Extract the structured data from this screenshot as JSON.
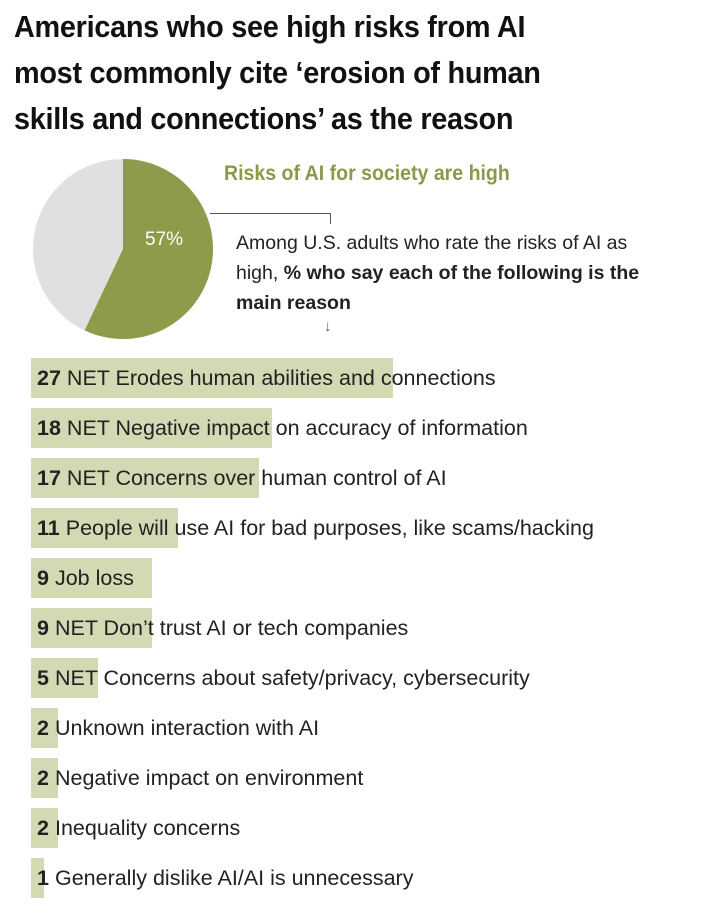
{
  "title": {
    "line1": "Americans who see high risks from AI",
    "line2": "most commonly cite ‘erosion of human",
    "line3": "skills and connections’ as the reason"
  },
  "pie": {
    "title": "Risks of AI for society are high",
    "value_label": "57%",
    "value": 57,
    "highlight_color": "#8d9b4a",
    "rest_color": "#e0e0e0"
  },
  "subtitle": {
    "regular": "Among U.S. adults who rate the risks of AI as high, ",
    "bold": "% who say each of the following is the main reason"
  },
  "arrow": "↓",
  "colors": {
    "bar": "#d3d9b3",
    "pie_accent": "#8d9b4a"
  },
  "chart_data": {
    "type": "bar",
    "orientation": "horizontal",
    "title": "Americans who see high risks from AI most commonly cite ‘erosion of human skills and connections’ as the reason",
    "subtitle": "Among U.S. adults who rate the risks of AI as high, % who say each of the following is the main reason",
    "inset_pie": {
      "label": "Risks of AI for society are high",
      "value": 57,
      "unit": "%"
    },
    "categories": [
      "NET Erodes human abilities and connections",
      "NET Negative impact on accuracy of information",
      "NET Concerns over human control of AI",
      "People will use AI for bad purposes, like scams/hacking",
      "Job loss",
      "NET Don’t trust AI or tech companies",
      "NET Concerns about safety/privacy, cybersecurity",
      "Unknown interaction with AI",
      "Negative impact on environment",
      "Inequality concerns",
      "Generally dislike AI/AI is unnecessary"
    ],
    "values": [
      27,
      18,
      17,
      11,
      9,
      9,
      5,
      2,
      2,
      2,
      1
    ],
    "xlabel": "",
    "ylabel": "",
    "grid": false,
    "legend": "none"
  },
  "rows": [
    {
      "num": "27",
      "label": "NET Erodes human abilities and connections"
    },
    {
      "num": "18",
      "label": "NET Negative impact on accuracy of information"
    },
    {
      "num": "17",
      "label": "NET Concerns over human control of AI"
    },
    {
      "num": "11",
      "label": "People will use AI for bad purposes, like scams/hacking"
    },
    {
      "num": "9",
      "label": "Job loss"
    },
    {
      "num": "9",
      "label": "NET Don’t trust AI or tech companies"
    },
    {
      "num": "5",
      "label": "NET Concerns about safety/privacy, cybersecurity"
    },
    {
      "num": "2",
      "label": "Unknown interaction with AI"
    },
    {
      "num": "2",
      "label": "Negative impact on environment"
    },
    {
      "num": "2",
      "label": "Inequality concerns"
    },
    {
      "num": "1",
      "label": "Generally dislike AI/AI is unnecessary"
    }
  ]
}
